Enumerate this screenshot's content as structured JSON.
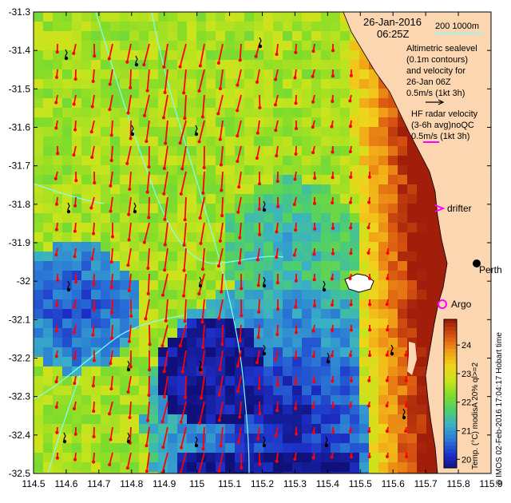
{
  "map": {
    "xlim": [
      114.5,
      115.9
    ],
    "ylim": [
      -32.5,
      -31.3
    ],
    "x_ticks": [
      "114.5",
      "114.6",
      "114.7",
      "114.8",
      "114.9",
      "115",
      "115.1",
      "115.2",
      "115.3",
      "115.4",
      "115.5",
      "115.6",
      "115.7",
      "115.8",
      "115.9"
    ],
    "y_ticks": [
      "-31.3",
      "-31.4",
      "-31.5",
      "-31.6",
      "-31.7",
      "-31.8",
      "-31.9",
      "-32",
      "-32.1",
      "-32.2",
      "-32.3",
      "-32.4",
      "-32.5"
    ],
    "land_color": "#fbd6b0",
    "velocity_arrow_color": "#ff0000",
    "argo_color": "#ff00ff",
    "contour_color": "#80ffff"
  },
  "header": {
    "date": "26-Jan-2016",
    "time": "06:25Z",
    "isobath_label": "200  1000m"
  },
  "legend": {
    "altimetry_lines": [
      "Altimetric sealevel",
      "(0.1m contours)",
      "and velocity for",
      "26-Jan 06Z",
      "0.5m/s (1kt 3h)"
    ],
    "hf_lines": [
      "HF radar velocity",
      "(3-6h avg)noQC",
      "0.5m/s (1kt 3h)"
    ],
    "drifter_label": "drifter",
    "argo_label": "Argo",
    "city_label": "Perth"
  },
  "colorbar": {
    "ticks": [
      "20",
      "21",
      "22",
      "23",
      "24"
    ],
    "range": [
      19.7,
      24.9
    ],
    "label": "Temp. (°C) modisA 20% ql>=2",
    "colors": [
      "#10107a",
      "#1d2fc8",
      "#2a76d6",
      "#3ab0c6",
      "#4ecf6c",
      "#7fdc2a",
      "#c8e41c",
      "#f2d31c",
      "#f09a16",
      "#d85310",
      "#a01e0a"
    ]
  },
  "credit": "© IMOS 02-Feb-2016 17:04:17 Hobart time"
}
